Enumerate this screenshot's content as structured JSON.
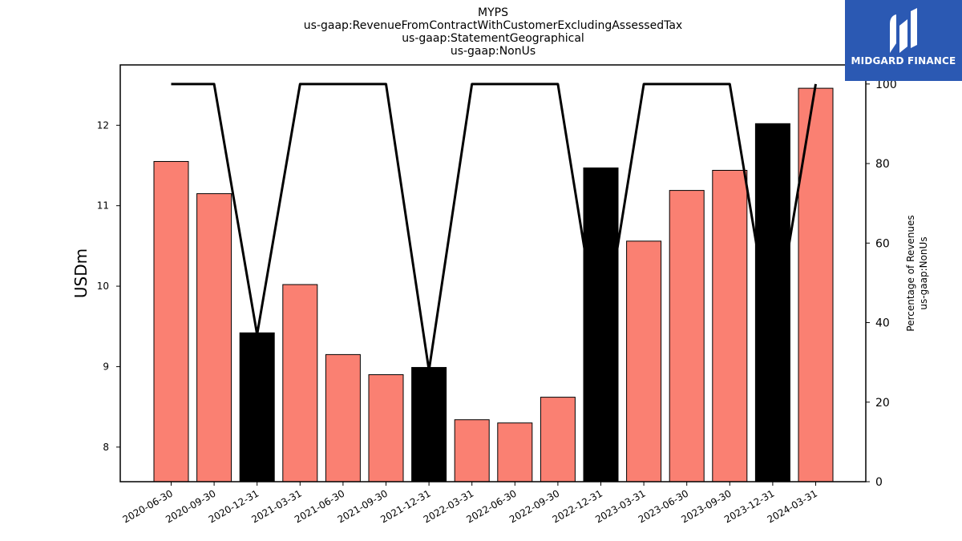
{
  "chart_data": {
    "type": "bar",
    "title_lines": [
      "MYPS",
      "us-gaap:RevenueFromContractWithCustomerExcludingAssessedTax",
      "us-gaap:StatementGeographical",
      "us-gaap:NonUs"
    ],
    "ylabel": "USDm",
    "y2label_lines": [
      "Percentage of Revenues",
      "us-gaap:NonUs"
    ],
    "categories": [
      "2020-06-30",
      "2020-09-30",
      "2020-12-31",
      "2021-03-31",
      "2021-06-30",
      "2021-09-30",
      "2021-12-31",
      "2022-03-31",
      "2022-06-30",
      "2022-09-30",
      "2022-12-31",
      "2023-03-31",
      "2023-06-30",
      "2023-09-30",
      "2023-12-31",
      "2024-03-31"
    ],
    "values": [
      11.55,
      11.15,
      9.42,
      10.02,
      9.15,
      8.9,
      8.99,
      8.34,
      8.3,
      8.62,
      11.47,
      10.56,
      11.19,
      11.44,
      12.02,
      12.46
    ],
    "bar_colors": [
      "#fa8072",
      "#fa8072",
      "#000000",
      "#fa8072",
      "#fa8072",
      "#fa8072",
      "#000000",
      "#fa8072",
      "#fa8072",
      "#fa8072",
      "#000000",
      "#fa8072",
      "#fa8072",
      "#fa8072",
      "#000000",
      "#fa8072"
    ],
    "ylim": [
      7.57,
      12.75
    ],
    "yticks": [
      8,
      9,
      10,
      11,
      12
    ],
    "line_series": {
      "values": [
        100,
        100,
        37,
        100,
        100,
        100,
        28,
        100,
        100,
        100,
        33,
        100,
        100,
        100,
        35,
        100
      ],
      "color": "#000000"
    },
    "y2lim": [
      0,
      104.8
    ],
    "y2ticks": [
      0,
      20,
      40,
      60,
      80,
      100
    ],
    "grid": false,
    "legend": "none"
  },
  "logo": {
    "text": "MIDGARD FINANCE",
    "color": "#2b59b3"
  }
}
